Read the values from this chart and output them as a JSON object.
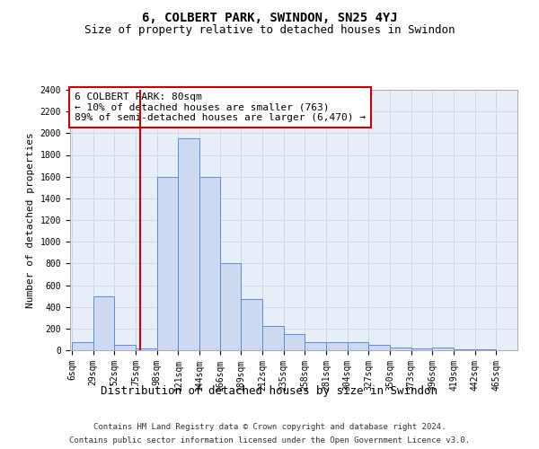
{
  "title": "6, COLBERT PARK, SWINDON, SN25 4YJ",
  "subtitle": "Size of property relative to detached houses in Swindon",
  "xlabel": "Distribution of detached houses by size in Swindon",
  "ylabel": "Number of detached properties",
  "footer_line1": "Contains HM Land Registry data © Crown copyright and database right 2024.",
  "footer_line2": "Contains public sector information licensed under the Open Government Licence v3.0.",
  "annotation_title": "6 COLBERT PARK: 80sqm",
  "annotation_line1": "← 10% of detached houses are smaller (763)",
  "annotation_line2": "89% of semi-detached houses are larger (6,470) →",
  "bar_color": "#ccd9f0",
  "bar_edge_color": "#5b8dd4",
  "red_line_x": 80,
  "bins": [
    6,
    29,
    52,
    75,
    98,
    121,
    144,
    166,
    189,
    212,
    235,
    258,
    281,
    304,
    327,
    350,
    373,
    396,
    419,
    442,
    465
  ],
  "counts": [
    75,
    500,
    50,
    20,
    1600,
    1950,
    1600,
    800,
    475,
    225,
    150,
    75,
    75,
    75,
    50,
    25,
    15,
    25,
    5,
    5
  ],
  "ylim": [
    0,
    2400
  ],
  "yticks": [
    0,
    200,
    400,
    600,
    800,
    1000,
    1200,
    1400,
    1600,
    1800,
    2000,
    2200,
    2400
  ],
  "grid_color": "#c8d4e8",
  "background_color": "#e8eef8",
  "annotation_box_color": "#ffffff",
  "annotation_box_edge": "#cc0000",
  "red_line_color": "#cc0000",
  "title_fontsize": 10,
  "subtitle_fontsize": 9,
  "axis_label_fontsize": 8,
  "tick_fontsize": 7,
  "annotation_fontsize": 8,
  "footer_fontsize": 6.5
}
